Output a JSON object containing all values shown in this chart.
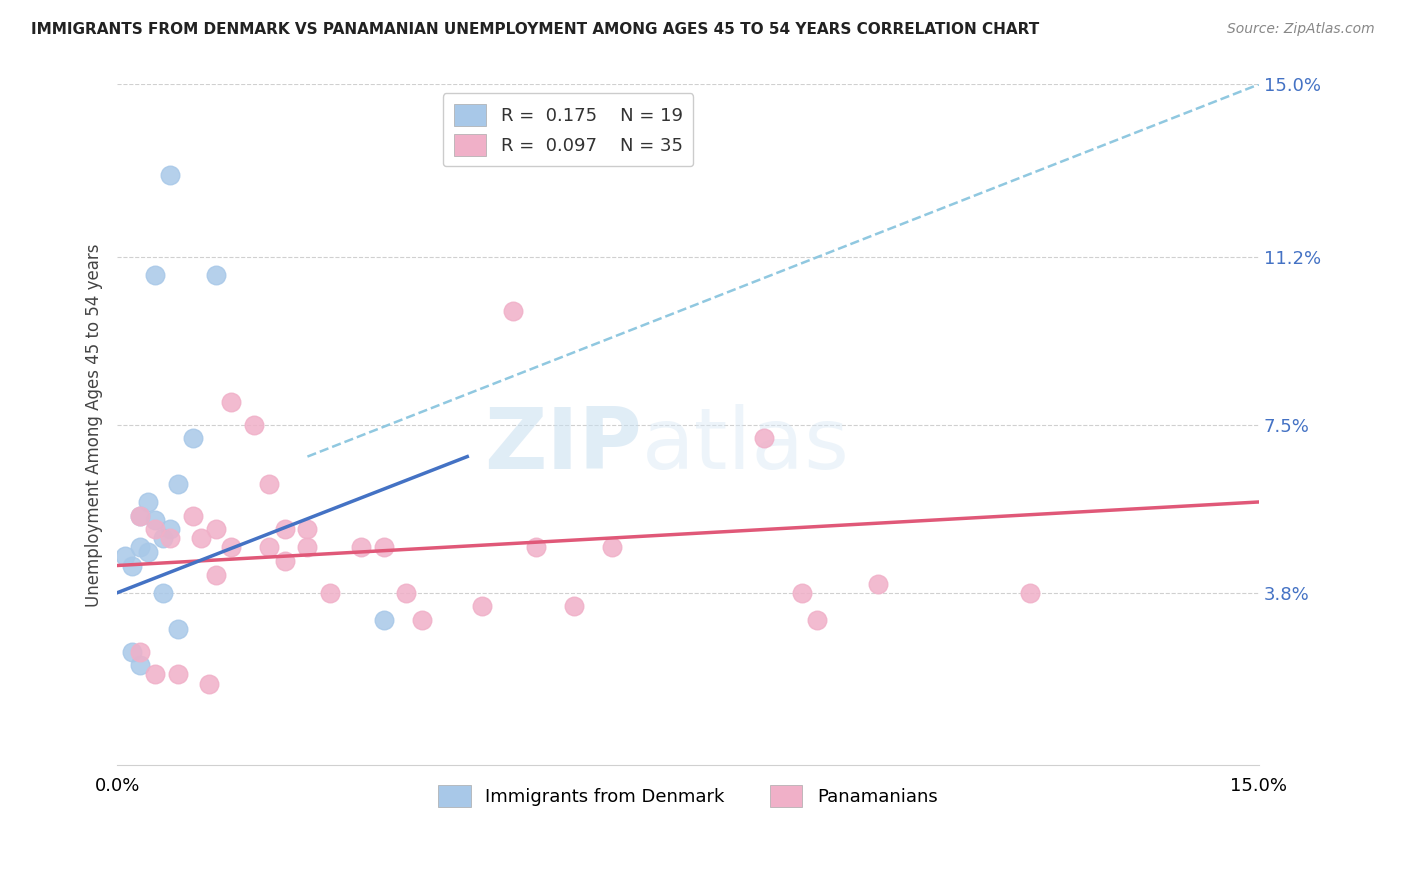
{
  "title": "IMMIGRANTS FROM DENMARK VS PANAMANIAN UNEMPLOYMENT AMONG AGES 45 TO 54 YEARS CORRELATION CHART",
  "source": "Source: ZipAtlas.com",
  "ylabel": "Unemployment Among Ages 45 to 54 years",
  "xmin": 0.0,
  "xmax": 0.15,
  "ymin": 0.0,
  "ymax": 0.15,
  "yticks": [
    0.038,
    0.075,
    0.112,
    0.15
  ],
  "ytick_labels": [
    "3.8%",
    "7.5%",
    "11.2%",
    "15.0%"
  ],
  "xtick_left_label": "0.0%",
  "xtick_right_label": "15.0%",
  "watermark_zip": "ZIP",
  "watermark_atlas": "atlas",
  "legend_r1": "R = ",
  "legend_v1": "0.175",
  "legend_n1": "N = ",
  "legend_v_n1": "19",
  "legend_r2": "R = ",
  "legend_v2": "0.097",
  "legend_n2": "N = ",
  "legend_v_n2": "35",
  "series1_label": "Immigrants from Denmark",
  "series2_label": "Panamanians",
  "color1": "#a8c8e8",
  "color2": "#f0b0c8",
  "line1_color": "#4472c4",
  "line2_color": "#e05878",
  "dashed_color": "#90c8e0",
  "scatter1_x": [
    0.007,
    0.013,
    0.005,
    0.01,
    0.008,
    0.004,
    0.003,
    0.005,
    0.007,
    0.006,
    0.003,
    0.004,
    0.001,
    0.002,
    0.006,
    0.008,
    0.002,
    0.035,
    0.003
  ],
  "scatter1_y": [
    0.13,
    0.108,
    0.108,
    0.072,
    0.062,
    0.058,
    0.055,
    0.054,
    0.052,
    0.05,
    0.048,
    0.047,
    0.046,
    0.044,
    0.038,
    0.03,
    0.025,
    0.032,
    0.022
  ],
  "scatter2_x": [
    0.003,
    0.005,
    0.007,
    0.01,
    0.011,
    0.013,
    0.015,
    0.018,
    0.02,
    0.022,
    0.025,
    0.013,
    0.015,
    0.02,
    0.022,
    0.025,
    0.028,
    0.032,
    0.035,
    0.038,
    0.04,
    0.055,
    0.06,
    0.065,
    0.048,
    0.052,
    0.085,
    0.09,
    0.092,
    0.1,
    0.12,
    0.003,
    0.005,
    0.008,
    0.012
  ],
  "scatter2_y": [
    0.055,
    0.052,
    0.05,
    0.055,
    0.05,
    0.052,
    0.08,
    0.075,
    0.062,
    0.052,
    0.052,
    0.042,
    0.048,
    0.048,
    0.045,
    0.048,
    0.038,
    0.048,
    0.048,
    0.038,
    0.032,
    0.048,
    0.035,
    0.048,
    0.035,
    0.1,
    0.072,
    0.038,
    0.032,
    0.04,
    0.038,
    0.025,
    0.02,
    0.02,
    0.018
  ],
  "trendline1_x": [
    0.0,
    0.046
  ],
  "trendline1_y": [
    0.038,
    0.068
  ],
  "trendline2_x": [
    0.0,
    0.15
  ],
  "trendline2_y": [
    0.044,
    0.058
  ],
  "dashed_line_x": [
    0.025,
    0.15
  ],
  "dashed_line_y": [
    0.068,
    0.15
  ]
}
